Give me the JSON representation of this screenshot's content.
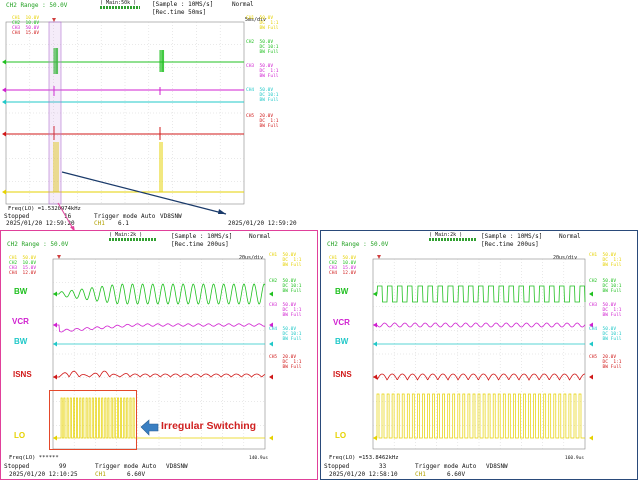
{
  "colors": {
    "ch1": "#e6d200",
    "ch2": "#20c020",
    "ch3": "#d020d0",
    "ch4": "#20c8c8",
    "ch5": "#d01818",
    "grid": "#c8c8c8",
    "box": "#e4482a",
    "arrow": "#3a7fc2",
    "callout_text": "#d02020",
    "connector": "#1a3a6a"
  },
  "top": {
    "range": "CH2 Range : 50.0V",
    "zoom_label": "( Main:50k )",
    "sample": "[Sample :  10MS/s]",
    "mode": "Normal",
    "rec": "[Rec.time    50ms]",
    "timebase": "5ms/div",
    "legend": [
      "CH1  10.0V",
      "CH2  10.0V",
      "CH3  50.0V",
      "CH4  15.0V"
    ],
    "ch_info": [
      {
        "name": "CH1",
        "l1": "50.0V",
        "l2": "DC  1:1",
        "l3": "BW Full"
      },
      {
        "name": "CH2",
        "l1": "50.0V",
        "l2": "DC 10:1",
        "l3": "BW Full"
      },
      {
        "name": "CH3",
        "l1": "50.0V",
        "l2": "DC  1:1",
        "l3": "BW Full"
      },
      {
        "name": "CH4",
        "l1": "50.0V",
        "l2": "DC 10:1",
        "l3": "BW Full"
      },
      {
        "name": "CH5",
        "l1": "20.0V",
        "l2": "DC  1:1",
        "l3": "BW Full"
      }
    ],
    "freq": "Freq(LO)   =1.5320974kHz",
    "status": "Stopped",
    "count": "16",
    "trigger_mode": "Trigger mode  Auto",
    "trig_src": "CH1",
    "trig_level": "6.1",
    "vdsnw": "VD8SNW",
    "date_left": "2025/01/20 12:59:20",
    "date_right": "2025/01/20 12:59:20"
  },
  "bottom_left": {
    "range": "CH2 Range : 50.0V",
    "zoom_label": "( Main:2k )",
    "sample": "[Sample :  10MS/s]",
    "mode": "Normal",
    "rec": "[Rec.time   200us]",
    "timebase": "20us/div",
    "legend": [
      "CH1  50.0V",
      "CH2  10.0V",
      "CH3  15.0V",
      "CH4  12.0V"
    ],
    "labels": {
      "bw": "BW",
      "vcr": "VCR",
      "bw2": "BW",
      "isns": "ISNS",
      "lo": "LO"
    },
    "callout": "Irregular Switching",
    "status": "Stopped",
    "count": "99",
    "trigger_mode": "Trigger mode  Auto",
    "trig_src": "CH1",
    "trig_level": "6.60V",
    "vdsnw": "VD8SNW",
    "freq": "Freq(LO)   ******",
    "date": "2025/01/20 12:10:25",
    "end_time": "140.9us"
  },
  "bottom_right": {
    "range": "CH2 Range : 50.0V",
    "zoom_label": "( Main:2k )",
    "sample": "[Sample :  10MS/s]",
    "mode": "Normal",
    "rec": "[Rec.time   200us]",
    "timebase": "20us/div",
    "legend": [
      "CH1  50.0V",
      "CH2  10.0V",
      "CH3  15.0V",
      "CH4  12.0V"
    ],
    "labels": {
      "bw": "BW",
      "vcr": "VCR",
      "bw2": "BW",
      "isns": "ISNS",
      "lo": "LO"
    },
    "status": "Stopped",
    "count": "33",
    "trigger_mode": "Trigger mode  Auto",
    "trig_src": "CH1",
    "trig_level": "6.60V",
    "vdsnw": "VD8SNW",
    "freq": "Freq(LO)   =153.8462kHz",
    "date": "2025/01/20 12:58:10",
    "end_time": "160.9us"
  }
}
